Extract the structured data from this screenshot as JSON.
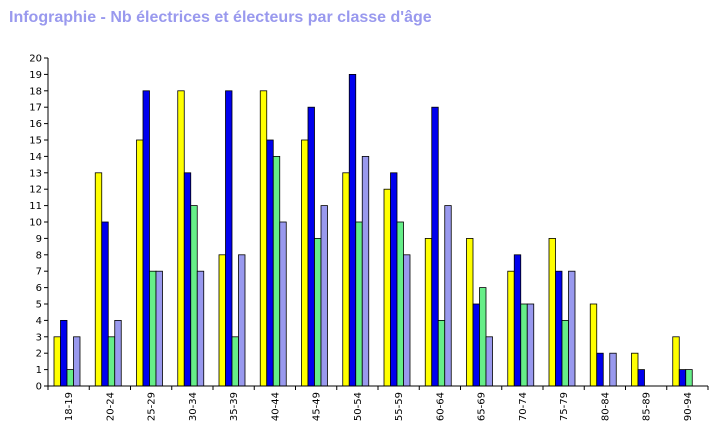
{
  "chart_data": {
    "type": "bar",
    "title": "Infographie - Nb électrices et électeurs par classe d'âge",
    "categories": [
      "18-19",
      "20-24",
      "25-29",
      "30-34",
      "35-39",
      "40-44",
      "45-49",
      "50-54",
      "55-59",
      "60-64",
      "65-69",
      "70-74",
      "75-79",
      "80-84",
      "85-89",
      "90-94"
    ],
    "series": [
      {
        "color": "#ffff00",
        "values": [
          3,
          13,
          15,
          18,
          8,
          18,
          15,
          13,
          12,
          9,
          9,
          7,
          9,
          5,
          2,
          3
        ]
      },
      {
        "color": "#0000ee",
        "values": [
          4,
          10,
          18,
          13,
          18,
          15,
          17,
          19,
          13,
          17,
          5,
          8,
          7,
          2,
          1,
          1
        ]
      },
      {
        "color": "#66ee88",
        "values": [
          1,
          3,
          7,
          11,
          3,
          14,
          9,
          10,
          10,
          4,
          6,
          5,
          4,
          0,
          0,
          1
        ]
      },
      {
        "color": "#9999ee",
        "values": [
          3,
          4,
          7,
          7,
          8,
          10,
          11,
          14,
          8,
          11,
          3,
          5,
          7,
          2,
          0,
          0
        ]
      }
    ],
    "ylim": [
      0,
      20
    ],
    "yticks": [
      "0",
      "1",
      "2",
      "3",
      "4",
      "5",
      "6",
      "7",
      "8",
      "9",
      "10",
      "11",
      "12",
      "13",
      "14",
      "15",
      "16",
      "17",
      "18",
      "19",
      "20"
    ],
    "grid": false,
    "xlabel": "",
    "ylabel": ""
  }
}
